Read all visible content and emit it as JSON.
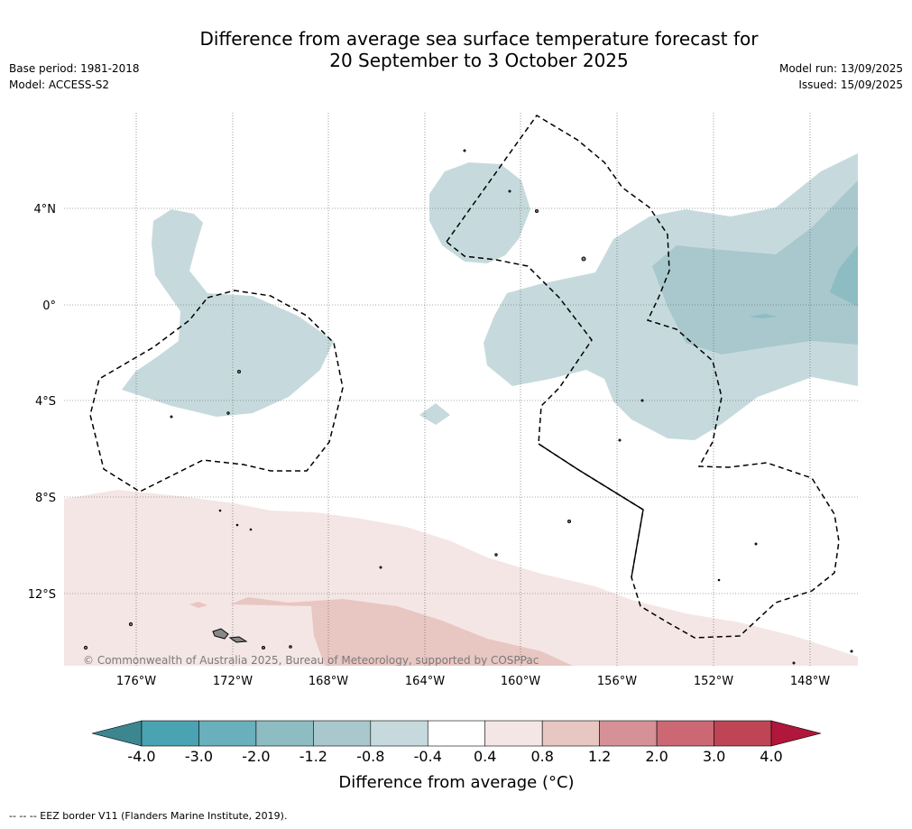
{
  "title_line1": "Difference from average sea surface temperature forecast for",
  "title_line2": "20 September to 3 October 2025",
  "base_period": "Base period: 1981-2018",
  "model": "Model: ACCESS-S2",
  "model_run": "Model run: 13/09/2025",
  "issued": "Issued: 15/09/2025",
  "map": {
    "lat_labels": [
      "4°N",
      "0°",
      "4°S",
      "8°S",
      "12°S"
    ],
    "lon_labels": [
      "176°W",
      "172°W",
      "168°W",
      "164°W",
      "160°W",
      "156°W",
      "152°W",
      "148°W"
    ],
    "copyright": "© Commonwealth of Australia 2025, Bureau of Meteorology, supported by COSPPac"
  },
  "colorbar": {
    "title": "Difference from average (°C)",
    "labels": [
      "-4.0",
      "-3.0",
      "-2.0",
      "-1.2",
      "-0.8",
      "-0.4",
      "0.4",
      "0.8",
      "1.2",
      "2.0",
      "3.0",
      "4.0"
    ],
    "colors": [
      "#4aa3b2",
      "#6aafbc",
      "#8dbcc3",
      "#a8c8cd",
      "#c6dadd",
      "#ffffff",
      "#f4e6e5",
      "#e8c6c2",
      "#d69197",
      "#cb6874",
      "#c04554"
    ],
    "under_color": "#3c8690",
    "over_color": "#b0173a"
  },
  "footnote": "-- -- -- EEZ border V11 (Flanders Marine Institute, 2019)."
}
